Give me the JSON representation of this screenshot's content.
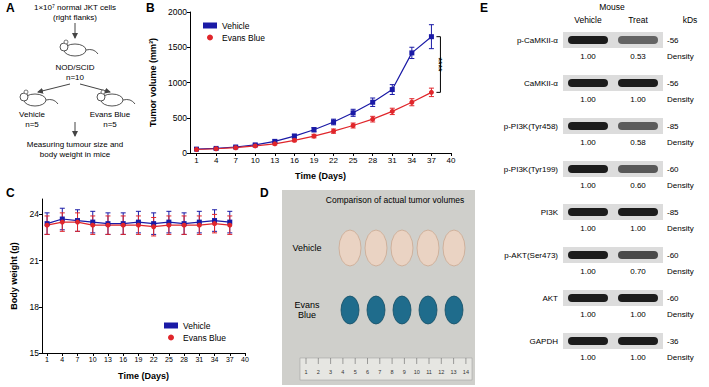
{
  "chart_data": [
    {
      "panel": "B",
      "type": "line",
      "x_label": "Time (Days)",
      "y_label": "Tumor volume (mm³)",
      "x": [
        1,
        4,
        7,
        10,
        13,
        16,
        19,
        22,
        25,
        28,
        31,
        34,
        37
      ],
      "xlim": [
        0,
        40
      ],
      "xticks": [
        1,
        4,
        7,
        10,
        13,
        16,
        19,
        22,
        25,
        28,
        31,
        34,
        37,
        40
      ],
      "ylim": [
        0,
        2000
      ],
      "yticks": [
        0,
        500,
        1000,
        1500,
        2000
      ],
      "grid": false,
      "legend": "upper left",
      "series": [
        {
          "name": "Vehicle",
          "color": "#1a1aa6",
          "marker": "square",
          "values": [
            55,
            65,
            85,
            115,
            165,
            240,
            330,
            440,
            570,
            720,
            900,
            1420,
            1650
          ],
          "errors": [
            10,
            10,
            12,
            15,
            20,
            25,
            30,
            40,
            50,
            60,
            70,
            80,
            170
          ]
        },
        {
          "name": "Evans Blue",
          "color": "#e0262b",
          "marker": "circle",
          "values": [
            50,
            60,
            75,
            100,
            130,
            180,
            240,
            310,
            390,
            480,
            590,
            720,
            860
          ],
          "errors": [
            8,
            8,
            10,
            12,
            15,
            20,
            25,
            30,
            35,
            40,
            45,
            50,
            60
          ]
        }
      ],
      "annotations": [
        {
          "text": "****",
          "x": 37,
          "y_from": 860,
          "y_to": 1650
        }
      ]
    },
    {
      "panel": "C",
      "type": "line",
      "x_label": "Time (Days)",
      "y_label": "Body weight (g)",
      "x": [
        1,
        4,
        7,
        10,
        13,
        16,
        19,
        22,
        25,
        28,
        31,
        34,
        37
      ],
      "xlim": [
        0,
        40
      ],
      "xticks": [
        1,
        4,
        7,
        10,
        13,
        16,
        19,
        22,
        25,
        28,
        31,
        34,
        37,
        40
      ],
      "ylim": [
        15,
        25
      ],
      "yticks": [
        15,
        18,
        21,
        24
      ],
      "grid": false,
      "legend": "lower right",
      "series": [
        {
          "name": "Vehicle",
          "color": "#1a1aa6",
          "marker": "square",
          "values": [
            23.4,
            23.7,
            23.6,
            23.5,
            23.4,
            23.4,
            23.5,
            23.4,
            23.5,
            23.4,
            23.5,
            23.6,
            23.5
          ],
          "errors": [
            0.7,
            0.7,
            0.7,
            0.7,
            0.7,
            0.7,
            0.7,
            0.7,
            0.7,
            0.7,
            0.7,
            0.7,
            0.7
          ]
        },
        {
          "name": "Evans Blue",
          "color": "#e0262b",
          "marker": "circle",
          "values": [
            23.3,
            23.5,
            23.5,
            23.3,
            23.3,
            23.3,
            23.3,
            23.2,
            23.3,
            23.3,
            23.3,
            23.4,
            23.3
          ],
          "errors": [
            0.6,
            0.6,
            0.6,
            0.6,
            0.6,
            0.6,
            0.6,
            0.6,
            0.6,
            0.6,
            0.6,
            0.6,
            0.6
          ]
        }
      ]
    }
  ],
  "diagram": {
    "panel": "A",
    "source": [
      "1×10⁷ normal JKT cells",
      "(right flanks)"
    ],
    "host": {
      "label": "NOD/SCID",
      "n": "n=10"
    },
    "groups": [
      {
        "label": "Vehicle",
        "n": "n=5"
      },
      {
        "label": "Evans Blue",
        "n": "n=5"
      }
    ],
    "outcome": [
      "Measuring tumour size and",
      "body weight in mice"
    ]
  },
  "photo": {
    "panel": "D",
    "title": "Comparison of actual tumor volumes",
    "rows": [
      "Vehicle",
      "Evans Blue"
    ],
    "ruler": [
      1,
      2,
      3,
      4,
      5,
      6,
      7,
      8,
      9,
      10,
      11,
      12,
      13,
      14
    ]
  },
  "blot": {
    "panel": "E",
    "header": "Mouse",
    "lanes": [
      "Vehicle",
      "Treat"
    ],
    "size_unit": "kDs",
    "density_label": "Density",
    "rows": [
      {
        "name": "p-CaMKII-α",
        "kd": "-56",
        "density": [
          "1.00",
          "0.53"
        ]
      },
      {
        "name": "CaMKII-α",
        "kd": "-56",
        "density": [
          "1.00",
          "1.00"
        ]
      },
      {
        "name": "p-PI3K(Tyr458)",
        "kd": "-85",
        "density": [
          "1.00",
          "0.58"
        ]
      },
      {
        "name": "p-PI3K(Tyr199)",
        "kd": "-60",
        "density": [
          "1.00",
          "0.60"
        ]
      },
      {
        "name": "PI3K",
        "kd": "-85",
        "density": [
          "1.00",
          "1.00"
        ]
      },
      {
        "name": "p-AKT(Ser473)",
        "kd": "-60",
        "density": [
          "1.00",
          "0.70"
        ]
      },
      {
        "name": "AKT",
        "kd": "-60",
        "density": [
          "1.00",
          "1.00"
        ]
      },
      {
        "name": "GAPDH",
        "kd": "-36",
        "density": [
          "1.00",
          "1.00"
        ]
      }
    ]
  }
}
